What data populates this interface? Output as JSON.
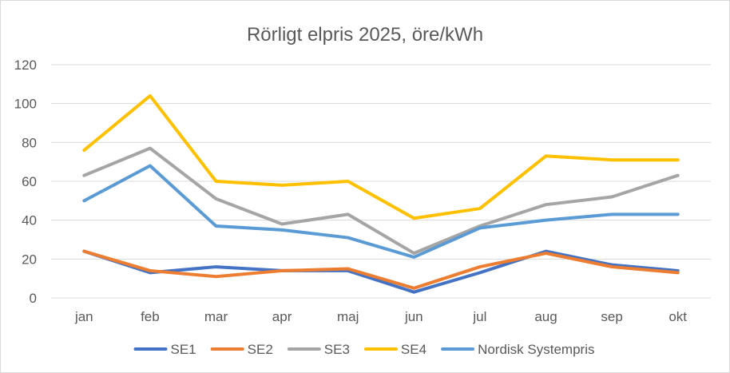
{
  "chart_data": {
    "type": "line",
    "title": "Rörligt elpris 2025, öre/kWh",
    "xlabel": "",
    "ylabel": "",
    "categories": [
      "jan",
      "feb",
      "mar",
      "apr",
      "maj",
      "jun",
      "jul",
      "aug",
      "sep",
      "okt"
    ],
    "ylim": [
      0,
      120
    ],
    "yticks": [
      0,
      20,
      40,
      60,
      80,
      100,
      120
    ],
    "grid": true,
    "legend_position": "bottom",
    "series": [
      {
        "name": "SE1",
        "color": "#4472c4",
        "values": [
          24,
          13,
          16,
          14,
          14,
          3,
          13,
          24,
          17,
          14
        ]
      },
      {
        "name": "SE2",
        "color": "#ed7d31",
        "values": [
          24,
          14,
          11,
          14,
          15,
          5,
          16,
          23,
          16,
          13
        ]
      },
      {
        "name": "SE3",
        "color": "#a5a5a5",
        "values": [
          63,
          77,
          51,
          38,
          43,
          23,
          37,
          48,
          52,
          63
        ]
      },
      {
        "name": "SE4",
        "color": "#ffc000",
        "values": [
          76,
          104,
          60,
          58,
          60,
          41,
          46,
          73,
          71,
          71
        ]
      },
      {
        "name": "Nordisk Systempris",
        "color": "#5b9bd5",
        "values": [
          50,
          68,
          37,
          35,
          31,
          21,
          36,
          40,
          43,
          43
        ]
      }
    ]
  }
}
